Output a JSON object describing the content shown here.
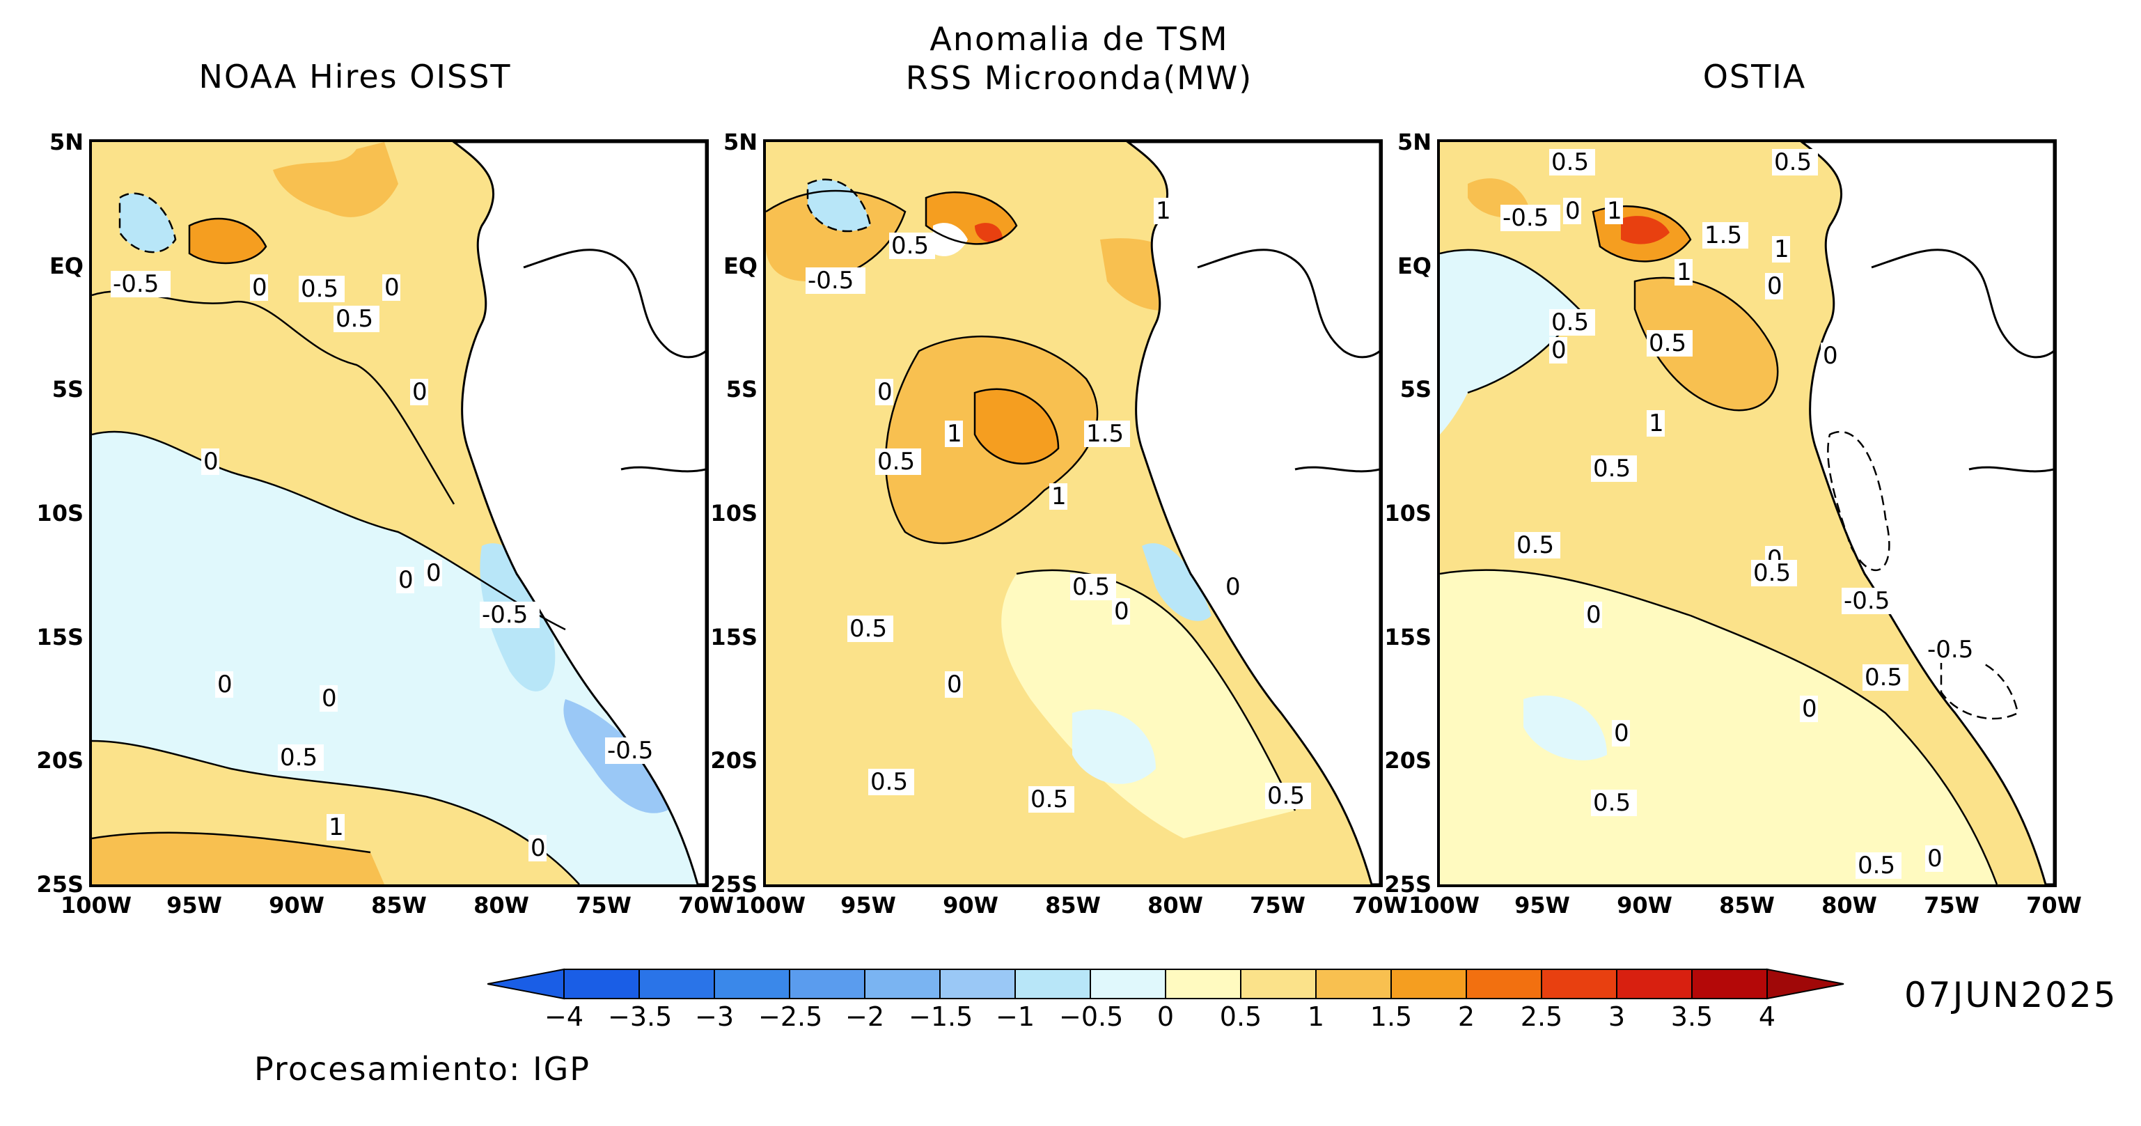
{
  "titles": {
    "left": "NOAA Hires OISST",
    "center_line1": "Anomalia de TSM",
    "center_line2": "RSS Microonda(MW)",
    "right": "OSTIA"
  },
  "axes": {
    "lat_labels": [
      "5N",
      "EQ",
      "5S",
      "10S",
      "15S",
      "20S",
      "25S"
    ],
    "lon_labels": [
      "100W",
      "95W",
      "90W",
      "85W",
      "80W",
      "75W",
      "70W"
    ]
  },
  "panels": [
    {
      "name": "NOAA Hires OISST",
      "contour_labels": [
        "-0.5",
        "0",
        "0.5",
        "0.5",
        "0",
        "0",
        "0",
        "-0.5",
        "0",
        "0",
        "0",
        "0",
        "0.5",
        "1",
        "-0.5",
        "0"
      ]
    },
    {
      "name": "RSS Microonda(MW)",
      "contour_labels": [
        "-0.5",
        "0.5",
        "1",
        "0",
        "1",
        "0.5",
        "1.5",
        "1",
        "0.5",
        "0.5",
        "0",
        "0",
        "0.5",
        "0.5",
        "0.5",
        "0"
      ]
    },
    {
      "name": "OSTIA",
      "contour_labels": [
        "0.5",
        "0.5",
        "-0.5",
        "0",
        "1",
        "1.5",
        "1",
        "1",
        "0",
        "0.5",
        "0",
        "0.5",
        "0",
        "1",
        "0.5",
        "0.5",
        "0",
        "0.5",
        "-0.5",
        "0",
        "-0.5",
        "0.5",
        "0",
        "0",
        "0.5",
        "0.5",
        "0"
      ]
    }
  ],
  "colorbar": {
    "labels": [
      "−4",
      "−3.5",
      "−3",
      "−2.5",
      "−2",
      "−1.5",
      "−1",
      "−0.5",
      "0",
      "0.5",
      "1",
      "1.5",
      "2",
      "2.5",
      "3",
      "3.5",
      "4"
    ],
    "colors": [
      "#1a5ee6",
      "#2a74e8",
      "#3a88ea",
      "#5a9cee",
      "#7ab4f2",
      "#9ac8f6",
      "#b8e6f8",
      "#e0f8fc",
      "#fffac0",
      "#fbe28a",
      "#f8c050",
      "#f59e20",
      "#f27010",
      "#e84010",
      "#d82010",
      "#b40808"
    ],
    "under_color": "#1a5ee6",
    "over_color": "#a00808"
  },
  "date": "07JUN2025",
  "footer": "Procesamiento: IGP"
}
